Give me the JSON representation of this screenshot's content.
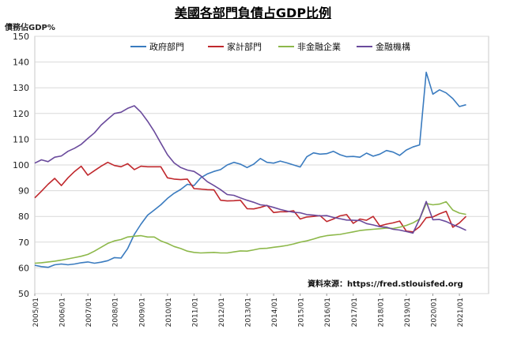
{
  "chart_data": {
    "type": "line",
    "title": "美國各部門負債占GDP比例",
    "ylabel": "債務佔GDP%",
    "xlabel": "",
    "source": "資料來源：https://fred.stlouisfed.org",
    "ylim": [
      50,
      150
    ],
    "yticks": [
      50,
      60,
      70,
      80,
      90,
      100,
      110,
      120,
      130,
      140,
      150
    ],
    "grid": true,
    "legend": "top",
    "x_start": 2005.0,
    "x_step": 0.25,
    "xticks": [
      "2005/01",
      "2006/01",
      "2007/01",
      "2008/01",
      "2009/01",
      "2010/01",
      "2011/01",
      "2012/01",
      "2013/01",
      "2014/01",
      "2015/01",
      "2016/01",
      "2017/01",
      "2018/01",
      "2019/01",
      "2020/01",
      "2021/01"
    ],
    "series": [
      {
        "name": "政府部門",
        "color": "#3a7bbf",
        "values": [
          61,
          60.5,
          60.2,
          61.2,
          61.5,
          61.2,
          61.5,
          62,
          62.3,
          61.8,
          62.2,
          62.8,
          64,
          63.8,
          67.5,
          73,
          77,
          80.5,
          82.5,
          84.5,
          87,
          89,
          90.5,
          92.5,
          92,
          95,
          96.5,
          97.5,
          98.2,
          100,
          101,
          100.3,
          99,
          100.3,
          102.5,
          101,
          100.7,
          101.5,
          100.8,
          100,
          99.2,
          103.2,
          104.7,
          104.2,
          104.4,
          105.3,
          104,
          103.2,
          103.3,
          103,
          104.6,
          103.4,
          104.2,
          105.6,
          105,
          103.7,
          105.8,
          107,
          107.8,
          136,
          127.5,
          129.2,
          128,
          125.8,
          122.7,
          123.4
        ]
      },
      {
        "name": "家計部門",
        "color": "#c0282d",
        "values": [
          87.2,
          89.8,
          92.5,
          94.8,
          92,
          95,
          97.5,
          99.5,
          96,
          97.8,
          99.5,
          101,
          99.8,
          99.3,
          100.5,
          98.2,
          99.5,
          99.3,
          99.3,
          99.3,
          95,
          94.5,
          94.3,
          94.5,
          90.8,
          90.6,
          90.4,
          90.3,
          86.3,
          86,
          86.1,
          86.3,
          83,
          82.9,
          83.5,
          84.3,
          81.5,
          81.8,
          81.8,
          82.2,
          79,
          79.8,
          80,
          80.3,
          78,
          79,
          80.2,
          80.7,
          77.3,
          79,
          78.5,
          80,
          76.3,
          77,
          77.5,
          78.2,
          74.3,
          74,
          76,
          79.5,
          79.8,
          81,
          82,
          75.8,
          77.5,
          80
        ]
      },
      {
        "name": "非金融企業",
        "color": "#8db84a",
        "values": [
          61.8,
          62,
          62.3,
          62.6,
          63,
          63.5,
          64,
          64.5,
          65.2,
          66.5,
          68,
          69.5,
          70.5,
          71,
          72,
          72.3,
          72.5,
          72,
          72,
          70.5,
          69.5,
          68.3,
          67.5,
          66.5,
          66,
          65.8,
          65.9,
          66,
          65.8,
          65.8,
          66.2,
          66.6,
          66.5,
          67,
          67.5,
          67.6,
          68,
          68.3,
          68.7,
          69.3,
          70,
          70.5,
          71.2,
          72,
          72.5,
          72.8,
          73,
          73.5,
          74,
          74.5,
          74.8,
          75,
          75.2,
          75.5,
          75.3,
          75.8,
          76.5,
          77.5,
          79,
          85,
          84.5,
          84.8,
          85.7,
          82.5,
          81.3,
          80.8
        ]
      },
      {
        "name": "金融機構",
        "color": "#6a4a9c",
        "values": [
          100.7,
          102,
          101.3,
          103,
          103.5,
          105.3,
          106.5,
          108,
          110.3,
          112.5,
          115.5,
          117.8,
          120,
          120.5,
          122,
          123,
          120.5,
          117,
          113,
          108.5,
          104,
          100.8,
          99,
          98,
          97.5,
          95.8,
          93.5,
          92,
          90.4,
          88.5,
          88.2,
          87.2,
          86.3,
          85.5,
          84.5,
          84.2,
          83.5,
          82.7,
          82.1,
          81.6,
          81.4,
          80.7,
          80.5,
          80.2,
          80.3,
          79.6,
          79.1,
          78.6,
          78.5,
          78.4,
          77.2,
          76.7,
          76,
          75.8,
          75,
          74.7,
          74.1,
          73.5,
          79,
          85.8,
          78.7,
          78.8,
          78,
          76.8,
          75.8,
          74.6
        ]
      }
    ]
  }
}
